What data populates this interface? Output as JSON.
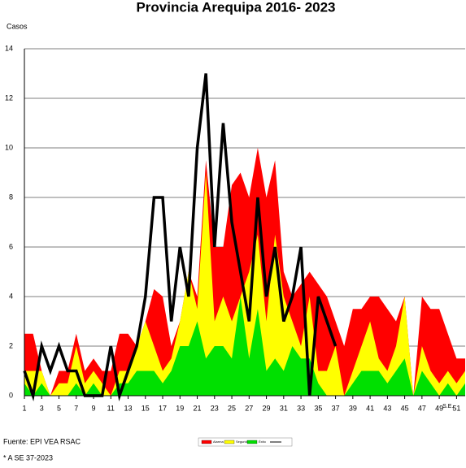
{
  "chart_data": {
    "type": "area",
    "title": "Provincia Arequipa  2016- 2023",
    "y_label": "Casos",
    "x_label": "S.E.",
    "footnotes": [
      "Fuente: EPI VEA RSAC",
      "* A  SE  37-2023"
    ],
    "x": [
      1,
      2,
      3,
      4,
      5,
      6,
      7,
      8,
      9,
      10,
      11,
      12,
      13,
      14,
      15,
      16,
      17,
      18,
      19,
      20,
      21,
      22,
      23,
      24,
      25,
      26,
      27,
      28,
      29,
      30,
      31,
      32,
      33,
      34,
      35,
      36,
      37,
      38,
      39,
      40,
      41,
      42,
      43,
      44,
      45,
      46,
      47,
      48,
      49,
      50,
      51,
      52
    ],
    "xlim": [
      1,
      52
    ],
    "xticks": [
      1,
      3,
      5,
      7,
      9,
      11,
      13,
      15,
      17,
      19,
      21,
      23,
      25,
      27,
      29,
      31,
      33,
      35,
      37,
      39,
      41,
      43,
      45,
      47,
      49,
      51
    ],
    "ylim": [
      0,
      14
    ],
    "yticks": [
      0,
      2,
      4,
      6,
      8,
      10,
      12,
      14
    ],
    "grid": true,
    "series": [
      {
        "name": "Alarma",
        "color": "#ff0000",
        "kind": "area",
        "values": [
          2.5,
          2.5,
          1,
          0,
          1,
          1,
          2.5,
          1,
          1.5,
          1,
          1,
          2.5,
          2.5,
          2,
          3,
          4.3,
          4,
          2,
          3,
          5,
          4,
          9.5,
          6,
          6,
          8.5,
          9,
          8,
          10,
          8,
          9.5,
          5,
          4,
          4.5,
          5,
          4.5,
          4,
          3,
          2,
          3.5,
          3.5,
          4,
          4,
          3.5,
          3,
          4,
          0,
          4,
          3.5,
          3.5,
          2.5,
          1.5,
          1.5
        ]
      },
      {
        "name": "Seguridad",
        "color": "#ffff00",
        "kind": "area",
        "values": [
          1,
          1,
          1,
          0,
          0.5,
          0.5,
          2,
          0.5,
          1,
          0.5,
          0,
          1,
          1,
          2,
          3,
          2,
          1,
          1.5,
          3,
          5,
          3.5,
          9,
          3,
          4,
          3,
          4,
          5,
          6.5,
          3,
          6.5,
          4,
          3,
          2,
          4,
          1,
          1,
          2,
          0,
          1,
          2,
          3,
          1.5,
          1,
          2,
          4,
          0,
          2,
          1,
          0.5,
          1,
          0.5,
          1
        ]
      },
      {
        "name": "Éxito",
        "color": "#00e000",
        "kind": "area",
        "values": [
          0.5,
          0,
          0.5,
          0,
          0,
          0,
          0.5,
          0,
          0.5,
          0,
          0,
          0.5,
          0.5,
          1,
          1,
          1,
          0.5,
          1,
          2,
          2,
          3,
          1.5,
          2,
          2,
          1.5,
          4,
          1.5,
          3.5,
          1,
          1.5,
          1,
          2,
          1.5,
          1.5,
          0.5,
          0,
          0,
          0,
          0.5,
          1,
          1,
          1,
          0.5,
          1,
          1.5,
          0,
          1,
          0.5,
          0,
          0.5,
          0,
          0.5
        ]
      },
      {
        "color": "#000000",
        "kind": "line",
        "values": [
          1,
          0,
          2,
          1,
          2,
          1,
          1,
          0,
          0,
          0,
          2,
          0,
          1,
          2,
          4,
          8,
          8,
          3,
          6,
          4,
          10,
          13,
          6,
          11,
          7,
          5,
          3,
          8,
          4,
          6,
          3,
          4,
          6,
          0,
          4,
          3,
          2,
          null,
          null,
          null,
          null,
          null,
          null,
          null,
          null,
          null,
          null,
          null,
          null,
          null,
          null,
          null
        ]
      }
    ]
  }
}
